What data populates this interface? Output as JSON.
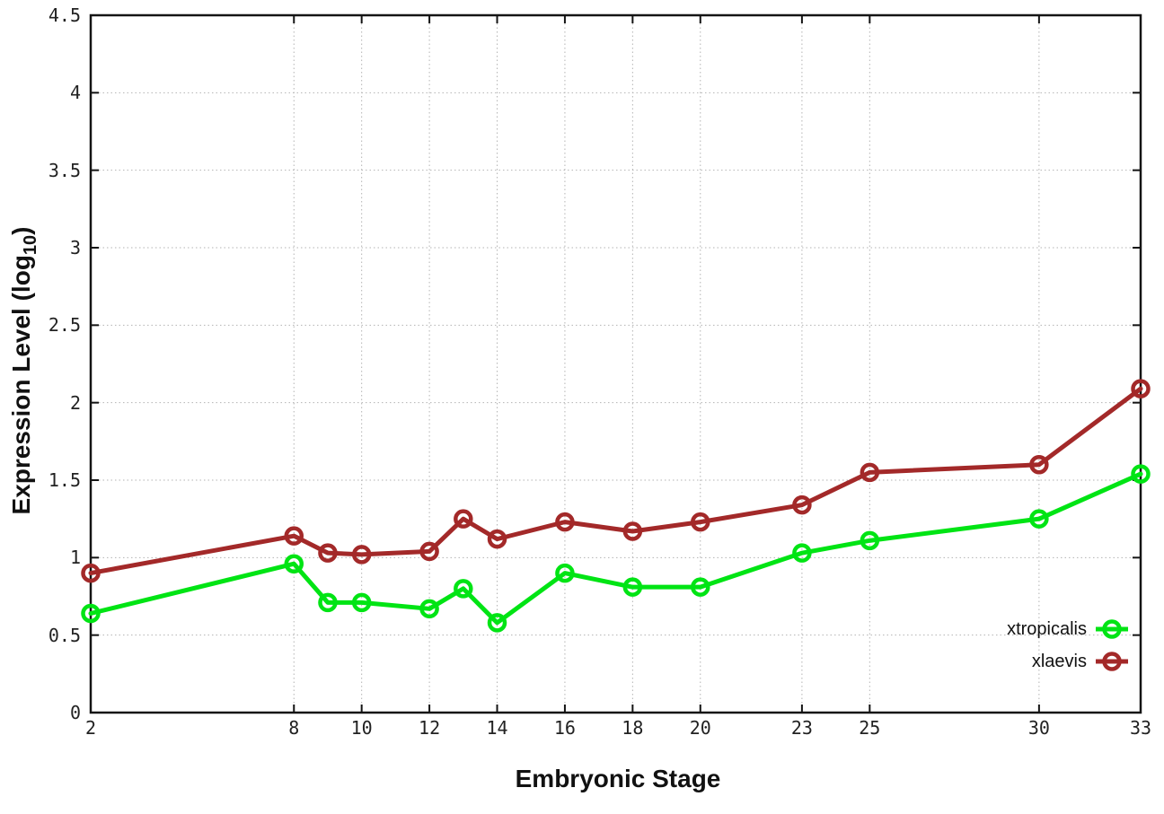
{
  "figure": {
    "background": "#ffffff",
    "border_color": "#141414",
    "grid_color": "#b3b3b3"
  },
  "chart_data": {
    "type": "line",
    "title": "",
    "xlabel": "Embryonic Stage",
    "ylabel": "Expression Level (log10)",
    "ylabel_prefix": "Expression Level (log",
    "ylabel_sub": "10",
    "ylabel_suffix": ")",
    "xlim": [
      2,
      33
    ],
    "ylim": [
      0,
      4.5
    ],
    "grid": true,
    "legend_position": "bottom-right-inside",
    "x_ticks": [
      2,
      8,
      10,
      12,
      14,
      16,
      18,
      20,
      23,
      25,
      30,
      33
    ],
    "x_tick_labels": [
      "2",
      "8",
      "10",
      "12",
      "14",
      "16",
      "18",
      "20",
      "23",
      "25",
      "30",
      "33"
    ],
    "y_ticks": [
      0,
      0.5,
      1,
      1.5,
      2,
      2.5,
      3,
      3.5,
      4,
      4.5
    ],
    "y_tick_labels": [
      "0",
      "0.5",
      "1",
      "1.5",
      "2",
      "2.5",
      "3",
      "3.5",
      "4",
      "4.5"
    ],
    "x": [
      2,
      8,
      9,
      10,
      12,
      13,
      14,
      16,
      18,
      20,
      23,
      25,
      30,
      33
    ],
    "series": [
      {
        "name": "xtropicalis",
        "color": "#00e414",
        "values": [
          0.64,
          0.96,
          0.71,
          0.71,
          0.67,
          0.8,
          0.58,
          0.9,
          0.81,
          0.81,
          1.03,
          1.11,
          1.25,
          1.54
        ]
      },
      {
        "name": "xlaevis",
        "color": "#a32929",
        "values": [
          0.9,
          1.14,
          1.03,
          1.02,
          1.04,
          1.25,
          1.12,
          1.23,
          1.17,
          1.23,
          1.34,
          1.55,
          1.6,
          2.09
        ]
      }
    ]
  }
}
